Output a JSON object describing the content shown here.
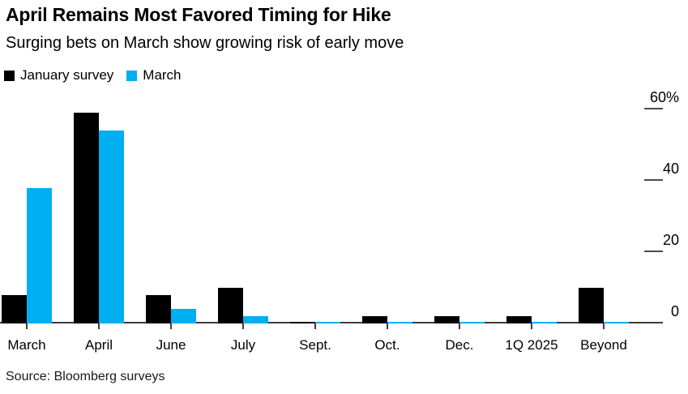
{
  "header": {
    "title": "April Remains Most Favored Timing for Hike",
    "subtitle": "Surging bets on March show growing risk of early move"
  },
  "legend": [
    {
      "label": "January survey",
      "color": "#000000"
    },
    {
      "label": "March",
      "color": "#00aef2"
    }
  ],
  "source": "Source: Bloomberg surveys",
  "accent_color": "#00aef2",
  "chart_data": {
    "type": "bar",
    "title": "April Remains Most Favored Timing for Hike",
    "subtitle": "Surging bets on March show growing risk of early move",
    "categories": [
      "March",
      "April",
      "June",
      "July",
      "Sept.",
      "Oct.",
      "Dec.",
      "1Q 2025",
      "Beyond"
    ],
    "series": [
      {
        "name": "January survey",
        "color": "#000000",
        "values": [
          8,
          59,
          8,
          10,
          0.5,
          2,
          2,
          2,
          10
        ]
      },
      {
        "name": "March",
        "color": "#00aef2",
        "values": [
          38,
          54,
          4,
          2,
          0.5,
          0.5,
          0.5,
          0.5,
          0.5
        ]
      }
    ],
    "unit": "%",
    "ylabel": "",
    "xlabel": "",
    "ylim": [
      0,
      60
    ],
    "ytick_values": [
      60,
      40,
      20,
      0
    ],
    "ytick_labels": [
      "60%",
      "40",
      "20",
      "0"
    ],
    "yaxis_side": "right",
    "grid": "tick-dashes-only",
    "legend_position": "top-left"
  }
}
